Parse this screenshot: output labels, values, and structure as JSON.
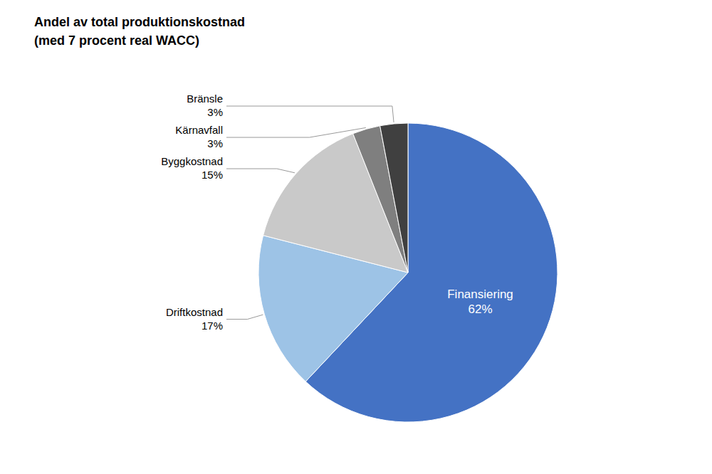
{
  "chart_data": {
    "type": "pie",
    "title": "Andel av total produktionskostnad",
    "subtitle": "(med 7 procent real WACC)",
    "categories": [
      "Finansiering",
      "Driftkostnad",
      "Byggkostnad",
      "Kärnavfall",
      "Bränsle"
    ],
    "values": [
      62,
      17,
      15,
      3,
      3
    ],
    "value_labels": [
      "62%",
      "17%",
      "15%",
      "3%",
      "3%"
    ],
    "colors": [
      "#4472C4",
      "#9DC3E6",
      "#C9C9C9",
      "#7F7F7F",
      "#404040"
    ],
    "data_labels": true
  }
}
